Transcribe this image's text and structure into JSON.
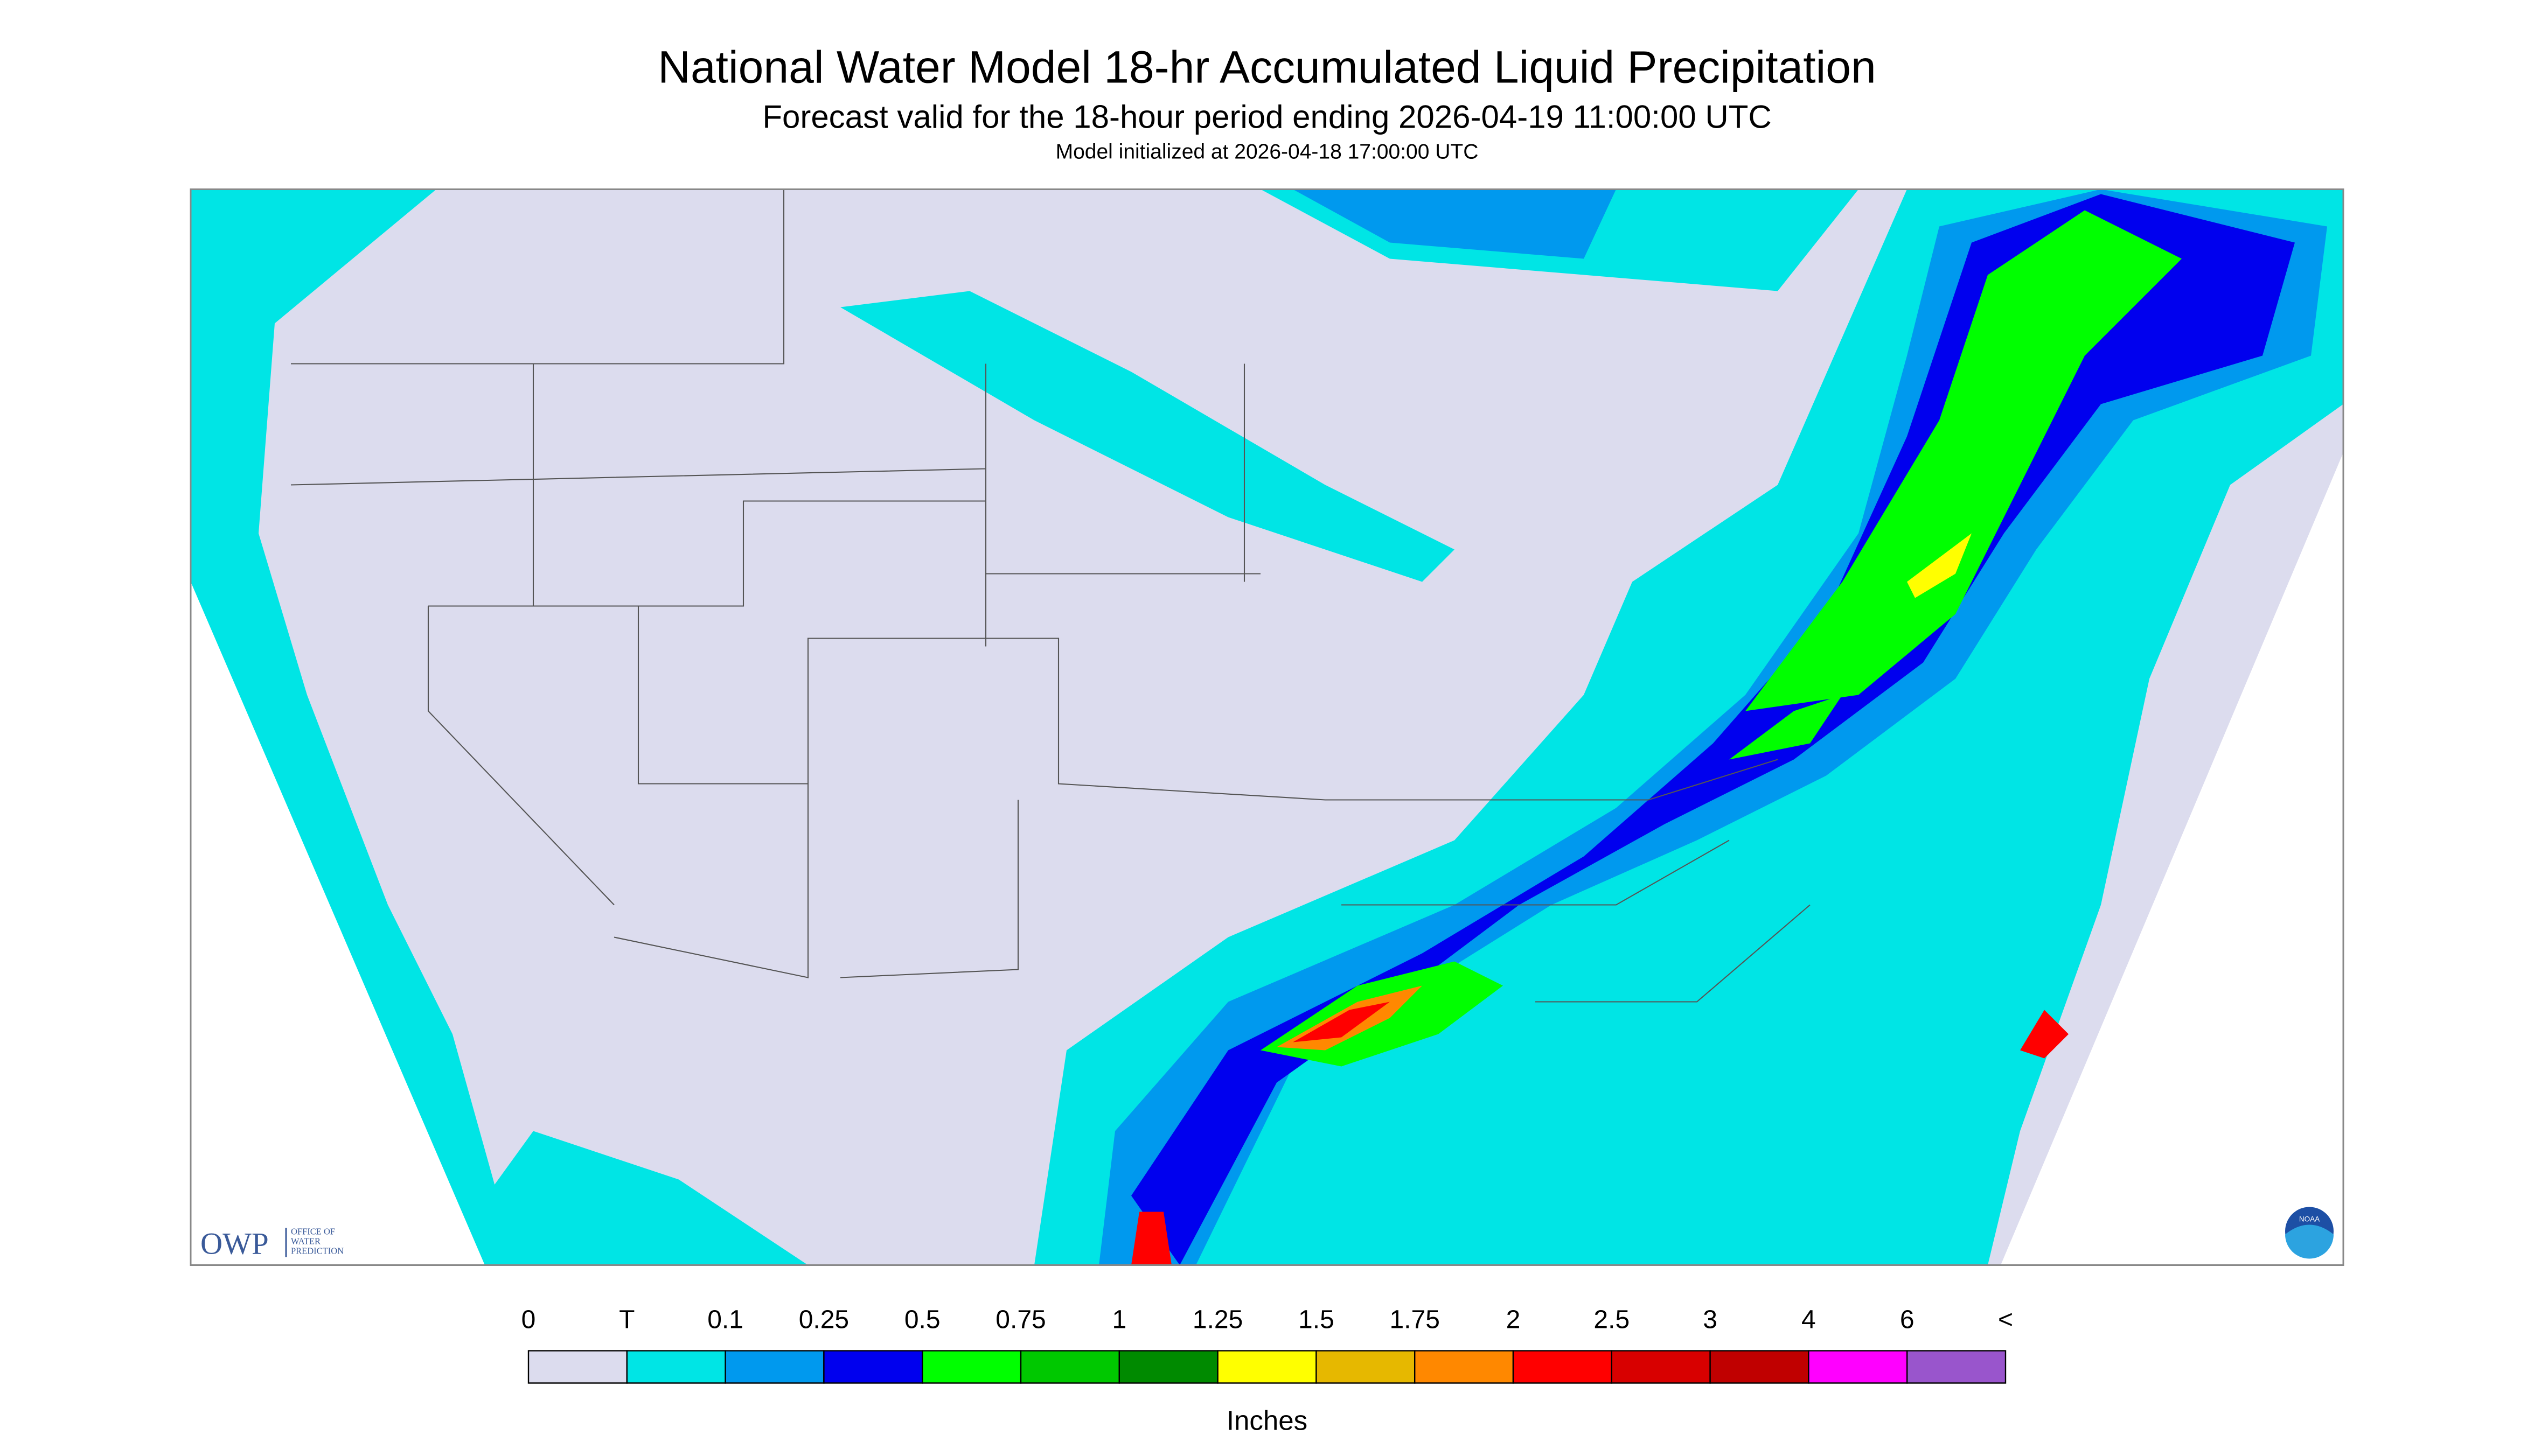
{
  "header": {
    "title": "National Water Model 18-hr Accumulated Liquid Precipitation",
    "subtitle": "Forecast valid for the 18-hour period ending 2026-04-19 11:00:00 UTC",
    "initialized": "Model initialized at 2026-04-18 17:00:00 UTC"
  },
  "legend": {
    "labels": [
      "0",
      "T",
      "0.1",
      "0.25",
      "0.5",
      "0.75",
      "1",
      "1.25",
      "1.5",
      "1.75",
      "2",
      "2.5",
      "3",
      "4",
      "6",
      "<"
    ],
    "colors": [
      "#dcdcee",
      "#00e5e5",
      "#0099ee",
      "#0000ee",
      "#00ff00",
      "#00c800",
      "#008a00",
      "#ffff00",
      "#e6b800",
      "#ff8800",
      "#ff0000",
      "#d80000",
      "#c00000",
      "#ff00ff",
      "#9955cc"
    ],
    "unit": "Inches"
  },
  "logo": {
    "name": "OWP",
    "line1": "OFFICE OF",
    "line2": "WATER",
    "line3": "PREDICTION",
    "agency": "NOAA"
  }
}
